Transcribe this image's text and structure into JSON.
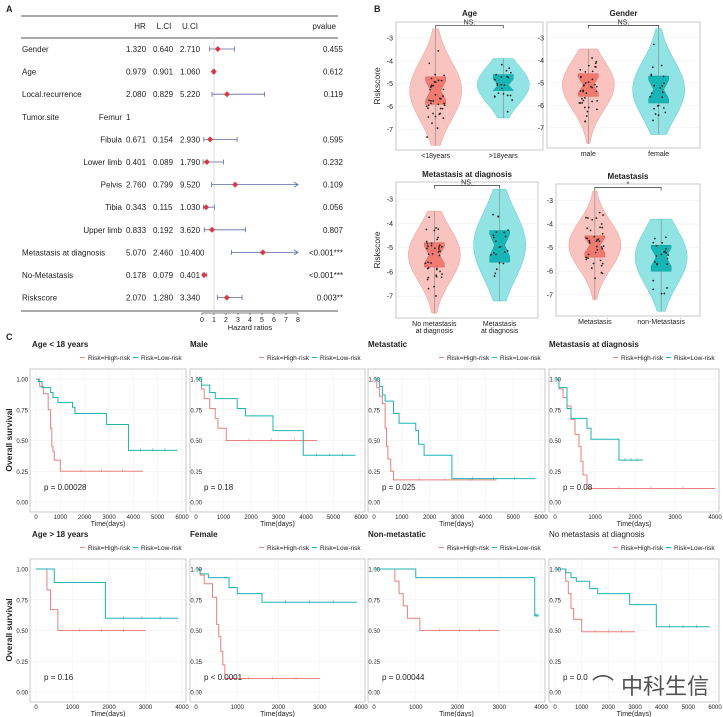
{
  "chart_data": [
    {
      "panel": "A",
      "type": "forest",
      "headers": {
        "hr": "HR",
        "lci": "L.CI",
        "uci": "U.CI",
        "pvalue": "pvalue"
      },
      "xlabel": "Hazard ratios",
      "xticks": [
        "0",
        "1",
        "2",
        "3",
        "4",
        "5",
        "6",
        "7",
        "8"
      ],
      "xlim": [
        0,
        8
      ],
      "rows": [
        {
          "label": "Gender",
          "sub": "",
          "hr": "1.320",
          "lci": "0.640",
          "uci": "2.710",
          "p": "0.455"
        },
        {
          "label": "Age",
          "sub": "",
          "hr": "0.979",
          "lci": "0.901",
          "uci": "1.060",
          "p": "0.612"
        },
        {
          "label": "Local.recurrence",
          "sub": "",
          "hr": "2.080",
          "lci": "0.829",
          "uci": "5.220",
          "p": "0.119"
        },
        {
          "label": "Tumor.site",
          "sub": "Femur",
          "hr": "1",
          "lci": "",
          "uci": "",
          "p": ""
        },
        {
          "label": "",
          "sub": "Fibula",
          "hr": "0.671",
          "lci": "0.154",
          "uci": "2.930",
          "p": "0.595"
        },
        {
          "label": "",
          "sub": "Lower limb",
          "hr": "0.401",
          "lci": "0.089",
          "uci": "1.790",
          "p": "0.232"
        },
        {
          "label": "",
          "sub": "Pelvis",
          "hr": "2.760",
          "lci": "0.799",
          "uci": "9.520",
          "p": "0.109"
        },
        {
          "label": "",
          "sub": "Tibia",
          "hr": "0.343",
          "lci": "0.115",
          "uci": "1.030",
          "p": "0.056"
        },
        {
          "label": "",
          "sub": "Upper limb",
          "hr": "0.833",
          "lci": "0.192",
          "uci": "3.620",
          "p": "0.807"
        },
        {
          "label": "Metastasis at diagnosis",
          "sub": "",
          "hr": "5.070",
          "lci": "2.460",
          "uci": "10.400",
          "p": "<0.001***"
        },
        {
          "label": "No-Metastasis",
          "sub": "",
          "hr": "0.178",
          "lci": "0.079",
          "uci": "0.401",
          "p": "<0.001***"
        },
        {
          "label": "Riskscore",
          "sub": "",
          "hr": "2.070",
          "lci": "1.280",
          "uci": "3.340",
          "p": "0.003**"
        }
      ]
    },
    {
      "panel": "B",
      "type": "violin",
      "ylabel": "Riskscore",
      "yticks": [
        "-3",
        "-4",
        "-5",
        "-6",
        "-7"
      ],
      "ylim": [
        -7.9,
        -2.3
      ],
      "plots": [
        {
          "title": "Age",
          "sig": "NS.",
          "groups": [
            {
              "label": "<18years",
              "stats": [
                -7.7,
                -5.9,
                -5.3,
                -4.7,
                -2.6
              ]
            },
            {
              "label": ">18years",
              "stats": [
                -6.5,
                -5.3,
                -5.05,
                -4.6,
                -3.9
              ]
            }
          ]
        },
        {
          "title": "Gender",
          "sig": "NS.",
          "groups": [
            {
              "label": "male",
              "stats": [
                -7.7,
                -5.6,
                -5.1,
                -4.6,
                -3.5
              ]
            },
            {
              "label": "female",
              "stats": [
                -7.3,
                -5.9,
                -5.3,
                -4.7,
                -2.6
              ]
            }
          ]
        },
        {
          "title": "Metastasis at diagnosis",
          "sig": "NS.",
          "groups": [
            {
              "label": "No metastasis",
              "label2": "at diagnosis",
              "stats": [
                -7.7,
                -5.8,
                -5.3,
                -4.8,
                -3.5
              ]
            },
            {
              "label": "Metastasis",
              "label2": "at diagnosis",
              "stats": [
                -7.2,
                -5.6,
                -4.9,
                -4.3,
                -2.6
              ]
            }
          ]
        },
        {
          "title": "Metastasis",
          "sig": "*",
          "groups": [
            {
              "label": "Metastasis",
              "stats": [
                -7.2,
                -5.4,
                -4.9,
                -4.5,
                -2.6
              ]
            },
            {
              "label": "non-Metastasis",
              "stats": [
                -7.7,
                -6.0,
                -5.4,
                -4.9,
                -3.8
              ]
            }
          ]
        }
      ]
    },
    {
      "panel": "C",
      "type": "line",
      "ylabel": "Overall survival",
      "xlabel": "Time(days)",
      "yticks": [
        "0.00",
        "0.25",
        "0.50",
        "0.75",
        "1.00"
      ],
      "legend": {
        "high": "Risk=High-risk",
        "low": "Risk=Low-risk"
      },
      "plots": [
        {
          "title": "Age < 18 years",
          "p": "p = 0.00028",
          "xmax": 6000,
          "xticks": [
            "0",
            "1000",
            "2000",
            "3000",
            "4000",
            "5000",
            "6000"
          ],
          "high": [
            [
              0,
              1
            ],
            [
              150,
              0.94
            ],
            [
              300,
              0.88
            ],
            [
              500,
              0.75
            ],
            [
              600,
              0.6
            ],
            [
              650,
              0.45
            ],
            [
              700,
              0.41
            ],
            [
              750,
              0.34
            ],
            [
              1000,
              0.25
            ],
            [
              4400,
              0.25
            ]
          ],
          "low": [
            [
              0,
              1
            ],
            [
              100,
              0.98
            ],
            [
              250,
              0.93
            ],
            [
              600,
              0.89
            ],
            [
              700,
              0.85
            ],
            [
              900,
              0.81
            ],
            [
              1500,
              0.77
            ],
            [
              1600,
              0.72
            ],
            [
              2900,
              0.63
            ],
            [
              3800,
              0.42
            ],
            [
              5800,
              0.42
            ]
          ]
        },
        {
          "title": "Male",
          "p": "p = 0.18",
          "xmax": 6000,
          "xticks": [
            "0",
            "1000",
            "2000",
            "3000",
            "4000",
            "5000",
            "6000"
          ],
          "high": [
            [
              0,
              1
            ],
            [
              200,
              0.92
            ],
            [
              300,
              0.84
            ],
            [
              500,
              0.76
            ],
            [
              700,
              0.68
            ],
            [
              800,
              0.6
            ],
            [
              1100,
              0.5
            ],
            [
              4400,
              0.5
            ]
          ],
          "low": [
            [
              0,
              1
            ],
            [
              200,
              0.95
            ],
            [
              500,
              0.89
            ],
            [
              700,
              0.84
            ],
            [
              1500,
              0.76
            ],
            [
              1800,
              0.7
            ],
            [
              2800,
              0.58
            ],
            [
              3900,
              0.38
            ],
            [
              5800,
              0.38
            ]
          ]
        },
        {
          "title": "Metastatic",
          "p": "p = 0.025",
          "xmax": 6000,
          "xticks": [
            "0",
            "1000",
            "2000",
            "3000",
            "4000",
            "5000",
            "6000"
          ],
          "high": [
            [
              0,
              1
            ],
            [
              100,
              0.93
            ],
            [
              200,
              0.86
            ],
            [
              300,
              0.8
            ],
            [
              400,
              0.6
            ],
            [
              450,
              0.45
            ],
            [
              500,
              0.35
            ],
            [
              600,
              0.25
            ],
            [
              700,
              0.18
            ],
            [
              4400,
              0.18
            ]
          ],
          "low": [
            [
              0,
              1
            ],
            [
              200,
              0.94
            ],
            [
              300,
              0.87
            ],
            [
              400,
              0.82
            ],
            [
              700,
              0.72
            ],
            [
              900,
              0.64
            ],
            [
              1500,
              0.58
            ],
            [
              1600,
              0.47
            ],
            [
              1800,
              0.38
            ],
            [
              2800,
              0.19
            ],
            [
              5800,
              0.19
            ]
          ]
        },
        {
          "title": "Metastasis at diagnosis",
          "p": "p = 0.08",
          "xmax": 4000,
          "xticks": [
            "0",
            "1000",
            "2000",
            "3000",
            "4000"
          ],
          "high": [
            [
              0,
              1
            ],
            [
              100,
              0.92
            ],
            [
              200,
              0.85
            ],
            [
              300,
              0.78
            ],
            [
              400,
              0.67
            ],
            [
              500,
              0.55
            ],
            [
              600,
              0.45
            ],
            [
              650,
              0.33
            ],
            [
              700,
              0.22
            ],
            [
              800,
              0.11
            ],
            [
              4000,
              0.11
            ]
          ],
          "low": [
            [
              0,
              1
            ],
            [
              100,
              0.93
            ],
            [
              300,
              0.76
            ],
            [
              400,
              0.68
            ],
            [
              800,
              0.6
            ],
            [
              900,
              0.51
            ],
            [
              1600,
              0.34
            ],
            [
              2200,
              0.34
            ]
          ]
        },
        {
          "title": "Age > 18 years",
          "p": "p = 0.16",
          "xmax": 4000,
          "xticks": [
            "0",
            "1000",
            "2000",
            "3000",
            "4000"
          ],
          "high": [
            [
              0,
              1
            ],
            [
              300,
              0.83
            ],
            [
              400,
              0.67
            ],
            [
              600,
              0.5
            ],
            [
              3000,
              0.5
            ]
          ],
          "low": [
            [
              0,
              1
            ],
            [
              500,
              0.89
            ],
            [
              1900,
              0.6
            ],
            [
              3900,
              0.6
            ]
          ]
        },
        {
          "title": "Female",
          "p": "p < 0.0001",
          "xmax": 4000,
          "xticks": [
            "0",
            "1000",
            "2000",
            "3000",
            "4000"
          ],
          "high": [
            [
              0,
              1
            ],
            [
              100,
              0.95
            ],
            [
              200,
              0.88
            ],
            [
              400,
              0.77
            ],
            [
              500,
              0.55
            ],
            [
              550,
              0.45
            ],
            [
              600,
              0.33
            ],
            [
              650,
              0.22
            ],
            [
              700,
              0.11
            ],
            [
              3000,
              0.11
            ]
          ],
          "low": [
            [
              0,
              1
            ],
            [
              100,
              0.96
            ],
            [
              300,
              0.93
            ],
            [
              800,
              0.85
            ],
            [
              1000,
              0.8
            ],
            [
              1600,
              0.73
            ],
            [
              3900,
              0.73
            ]
          ]
        },
        {
          "title": "Non-metastatic",
          "p": "p = 0.00044",
          "xmax": 4000,
          "xticks": [
            "0",
            "1000",
            "2000",
            "3000",
            "4000"
          ],
          "high": [
            [
              0,
              1
            ],
            [
              500,
              0.9
            ],
            [
              600,
              0.8
            ],
            [
              700,
              0.7
            ],
            [
              800,
              0.6
            ],
            [
              1100,
              0.5
            ],
            [
              3000,
              0.5
            ]
          ],
          "low": [
            [
              0,
              1
            ],
            [
              1000,
              0.93
            ],
            [
              3850,
              0.62
            ],
            [
              3950,
              0.62
            ]
          ]
        },
        {
          "title": "No metastasis at diagnosis",
          "p": "p = 0.0",
          "xmax": 6000,
          "xticks": [
            "0",
            "1000",
            "2000",
            "3000",
            "4000",
            "5000",
            "6000"
          ],
          "high": [
            [
              0,
              1
            ],
            [
              400,
              0.9
            ],
            [
              500,
              0.8
            ],
            [
              600,
              0.68
            ],
            [
              700,
              0.59
            ],
            [
              1000,
              0.49
            ],
            [
              3000,
              0.49
            ]
          ],
          "low": [
            [
              0,
              1
            ],
            [
              400,
              0.97
            ],
            [
              600,
              0.93
            ],
            [
              800,
              0.9
            ],
            [
              1300,
              0.84
            ],
            [
              1600,
              0.8
            ],
            [
              2800,
              0.71
            ],
            [
              3800,
              0.53
            ],
            [
              5800,
              0.53
            ]
          ]
        }
      ]
    }
  ],
  "panel_labels": [
    "A",
    "B",
    "C"
  ],
  "colors": {
    "high": "#e8827c",
    "low": "#1fb3b3",
    "violin_red": "#f8bdb8",
    "box_red": "#f07a70",
    "violin_teal": "#86e0e0",
    "box_teal": "#17b5b5"
  },
  "watermark": "中科生信"
}
